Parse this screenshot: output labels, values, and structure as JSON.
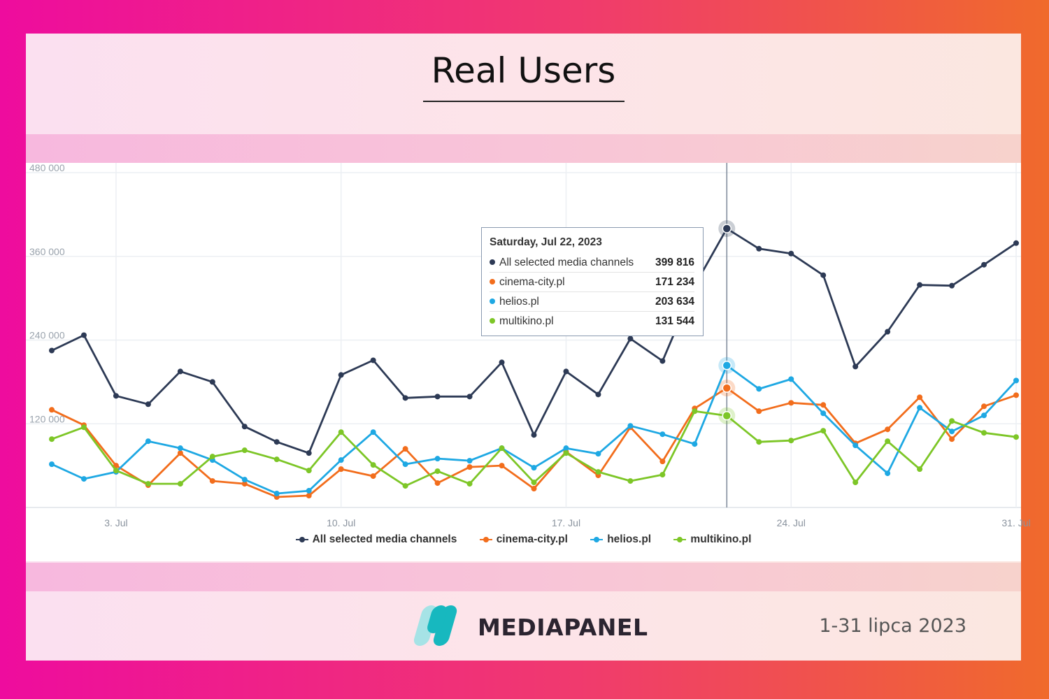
{
  "page": {
    "title": "Real Users"
  },
  "footer": {
    "brand": "MEDIAPANEL",
    "date_range": "1-31 lipca 2023"
  },
  "tooltip": {
    "date": "Saturday, Jul 22, 2023",
    "rows": [
      {
        "label": "All selected media channels",
        "value": "399 816",
        "color": "#2d3a55"
      },
      {
        "label": "cinema-city.pl",
        "value": "171 234",
        "color": "#f26d1c"
      },
      {
        "label": "helios.pl",
        "value": "203 634",
        "color": "#1ea8e3"
      },
      {
        "label": "multikino.pl",
        "value": "131 544",
        "color": "#7dc627"
      }
    ]
  },
  "chart_data": {
    "type": "line",
    "x": [
      "Jul 1",
      "Jul 2",
      "Jul 3",
      "Jul 4",
      "Jul 5",
      "Jul 6",
      "Jul 7",
      "Jul 8",
      "Jul 9",
      "Jul 10",
      "Jul 11",
      "Jul 12",
      "Jul 13",
      "Jul 14",
      "Jul 15",
      "Jul 16",
      "Jul 17",
      "Jul 18",
      "Jul 19",
      "Jul 20",
      "Jul 21",
      "Jul 22",
      "Jul 23",
      "Jul 24",
      "Jul 25",
      "Jul 26",
      "Jul 27",
      "Jul 28",
      "Jul 29",
      "Jul 30",
      "Jul 31"
    ],
    "x_tick_labels": [
      {
        "date": "Jul 3",
        "label": "3. Jul"
      },
      {
        "date": "Jul 10",
        "label": "10. Jul"
      },
      {
        "date": "Jul 17",
        "label": "17. Jul"
      },
      {
        "date": "Jul 24",
        "label": "24. Jul"
      },
      {
        "date": "Jul 31",
        "label": "31. Jul"
      }
    ],
    "y_ticks": [
      120000,
      240000,
      360000,
      480000
    ],
    "y_tick_labels": [
      "120 000",
      "240 000",
      "360 000",
      "480 000"
    ],
    "ylim": [
      0,
      480000
    ],
    "grid": true,
    "legend_position": "bottom",
    "highlight_x": "Jul 22",
    "series": [
      {
        "name": "All selected media channels",
        "color": "#2d3a55",
        "values": [
          225000,
          247000,
          160000,
          148000,
          195000,
          180000,
          116000,
          94000,
          78000,
          190000,
          211000,
          157000,
          159000,
          159000,
          208000,
          104000,
          195000,
          162000,
          242000,
          210000,
          318000,
          399816,
          371000,
          364000,
          333000,
          202000,
          252000,
          319000,
          318000,
          348000,
          379000
        ]
      },
      {
        "name": "cinema-city.pl",
        "color": "#f26d1c",
        "values": [
          140000,
          118000,
          60000,
          32000,
          78000,
          38000,
          34000,
          15000,
          17000,
          55000,
          45000,
          84000,
          35000,
          58000,
          60000,
          27000,
          80000,
          46000,
          115000,
          66000,
          142000,
          171234,
          138000,
          150000,
          147000,
          92000,
          112000,
          158000,
          98000,
          145000,
          161000
        ]
      },
      {
        "name": "helios.pl",
        "color": "#1ea8e3",
        "values": [
          62000,
          41000,
          51000,
          95000,
          85000,
          68000,
          40000,
          20000,
          24000,
          68000,
          108000,
          62000,
          70000,
          67000,
          85000,
          57000,
          85000,
          77000,
          117000,
          105000,
          91000,
          203634,
          170000,
          184000,
          135000,
          89000,
          49000,
          143000,
          109000,
          132000,
          182000
        ]
      },
      {
        "name": "multikino.pl",
        "color": "#7dc627",
        "values": [
          98000,
          115000,
          53000,
          34000,
          34000,
          73000,
          82000,
          69000,
          53000,
          108000,
          61000,
          31000,
          52000,
          34000,
          85000,
          36000,
          78000,
          51000,
          38000,
          47000,
          138000,
          131544,
          94000,
          96000,
          110000,
          36000,
          95000,
          55000,
          124000,
          107000,
          101000
        ]
      }
    ]
  }
}
